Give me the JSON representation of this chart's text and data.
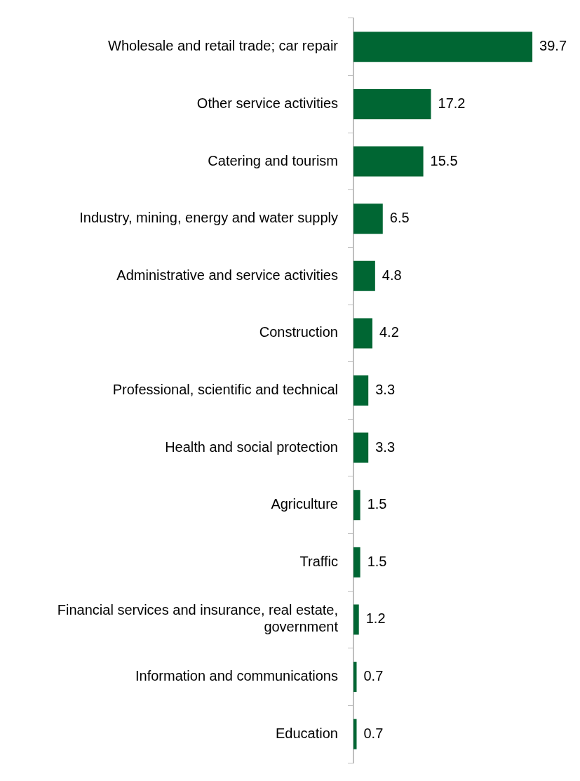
{
  "chart_data": {
    "type": "bar",
    "orientation": "horizontal",
    "categories": [
      "Wholesale and retail trade; car repair",
      "Other service activities",
      "Catering and tourism",
      "Industry, mining, energy and water supply",
      "Administrative and service activities",
      "Construction",
      "Professional, scientific and technical",
      "Health and social protection",
      "Agriculture",
      "Traffic",
      "Financial services and insurance, real estate, government",
      "Information and communications",
      "Education"
    ],
    "values": [
      39.7,
      17.2,
      15.5,
      6.5,
      4.8,
      4.2,
      3.3,
      3.3,
      1.5,
      1.5,
      1.2,
      0.7,
      0.7
    ],
    "color": "#006633",
    "data_labels": true,
    "tick_labels": "y",
    "grid": false,
    "legend": false
  }
}
